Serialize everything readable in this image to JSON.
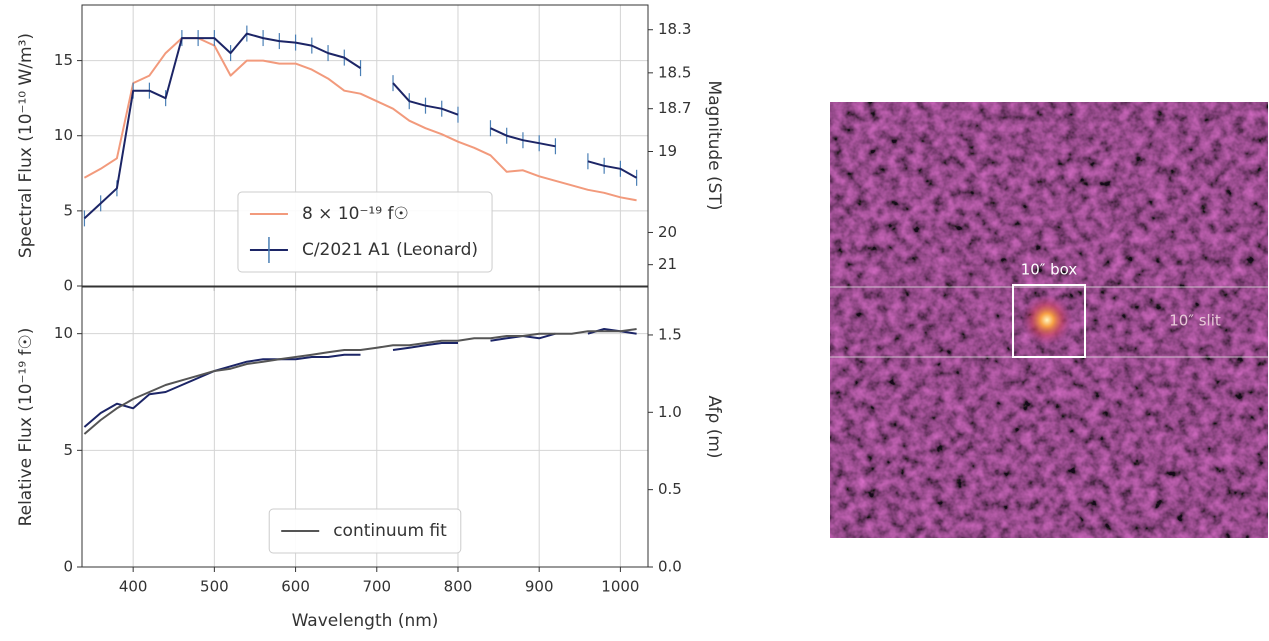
{
  "chart_data": [
    {
      "type": "line",
      "ylabel": "Spectral Flux (10⁻¹⁰ W/m³)",
      "y2label": "Magnitude (ST)",
      "x": [
        340,
        360,
        380,
        400,
        420,
        440,
        460,
        480,
        500,
        520,
        540,
        560,
        580,
        600,
        620,
        640,
        660,
        680,
        700,
        720,
        740,
        760,
        780,
        800,
        820,
        840,
        860,
        880,
        900,
        920,
        940,
        960,
        980,
        1000,
        1020
      ],
      "series": [
        {
          "name": "8 × 10⁻¹⁹ f☉",
          "color": "#f29a7c",
          "style": "line",
          "values": [
            7.2,
            7.8,
            8.5,
            13.5,
            14,
            15.5,
            16.5,
            16.5,
            16,
            14,
            15,
            15,
            14.8,
            14.8,
            14.4,
            13.8,
            13.0,
            12.8,
            12.3,
            11.8,
            11.0,
            10.5,
            10.1,
            9.6,
            9.2,
            8.7,
            7.6,
            7.7,
            7.3,
            7.0,
            6.7,
            6.4,
            6.2,
            5.9,
            5.7
          ]
        },
        {
          "name": "C/2021 A1 (Leonard)",
          "color": "#1c2566",
          "style": "errorbar",
          "values": [
            4.5,
            5.5,
            6.5,
            13,
            13,
            12.5,
            16.5,
            16.5,
            16.5,
            15.5,
            16.8,
            16.5,
            16.3,
            16.2,
            16,
            15.5,
            15.2,
            14.5,
            null,
            13.5,
            12.3,
            12,
            11.8,
            11.4,
            null,
            10.5,
            10,
            9.7,
            9.5,
            9.3,
            null,
            8.3,
            8,
            7.8,
            7.2
          ]
        }
      ],
      "xlim": [
        337,
        1034
      ],
      "xticks": [
        400,
        500,
        600,
        700,
        800,
        900,
        1000
      ],
      "show_xtick_labels": false,
      "ylim": [
        0,
        18.7
      ],
      "yticks": [
        0,
        5,
        10,
        15
      ],
      "y2scale": "magnitude",
      "y2lim": [
        null,
        18.2
      ],
      "y2ticks": [
        18.3,
        18.5,
        18.7,
        19,
        20,
        21
      ],
      "grid": true,
      "legend": "lower center"
    },
    {
      "type": "line",
      "ylabel": "Relative Flux (10⁻¹⁹ f☉)",
      "y2label": "Afρ (m)",
      "xlabel": "Wavelength (nm)",
      "x": [
        340,
        360,
        380,
        400,
        420,
        440,
        460,
        480,
        500,
        520,
        540,
        560,
        580,
        600,
        620,
        640,
        660,
        680,
        700,
        720,
        740,
        760,
        780,
        800,
        820,
        840,
        860,
        880,
        900,
        920,
        940,
        960,
        980,
        1000,
        1020
      ],
      "series": [
        {
          "color": "#1c2566",
          "style": "line",
          "values": [
            6,
            6.6,
            7,
            6.8,
            7.4,
            7.5,
            7.8,
            8.1,
            8.4,
            8.6,
            8.8,
            8.9,
            8.9,
            8.9,
            9.0,
            9.0,
            9.1,
            9.1,
            null,
            9.3,
            9.4,
            9.5,
            9.6,
            9.6,
            null,
            9.7,
            9.8,
            9.9,
            9.8,
            10,
            null,
            10.0,
            10.2,
            10.1,
            10.0
          ]
        },
        {
          "name": "continuum fit",
          "color": "#555555",
          "style": "line",
          "values": [
            5.7,
            6.3,
            6.8,
            7.2,
            7.5,
            7.8,
            8.0,
            8.2,
            8.4,
            8.5,
            8.7,
            8.8,
            8.9,
            9.0,
            9.1,
            9.2,
            9.3,
            9.3,
            9.4,
            9.5,
            9.5,
            9.6,
            9.7,
            9.7,
            9.8,
            9.8,
            9.9,
            9.9,
            10.0,
            10.0,
            10.0,
            10.1,
            10.1,
            10.1,
            10.2
          ]
        }
      ],
      "xlim": [
        337,
        1034
      ],
      "xticks": [
        400,
        500,
        600,
        700,
        800,
        900,
        1000
      ],
      "show_xtick_labels": true,
      "ylim": [
        0,
        12
      ],
      "yticks": [
        0,
        5,
        10
      ],
      "y2scale": "linear",
      "y2lim": [
        0,
        1.81
      ],
      "y2ticks": [
        {
          "value": 0,
          "label": "0.0"
        },
        0.5,
        {
          "value": 1,
          "label": "1.0"
        },
        1.5
      ],
      "grid": true,
      "legend": "lower center"
    }
  ],
  "image": {
    "box_label": "10″ box",
    "slit_label": "10″ slit"
  }
}
